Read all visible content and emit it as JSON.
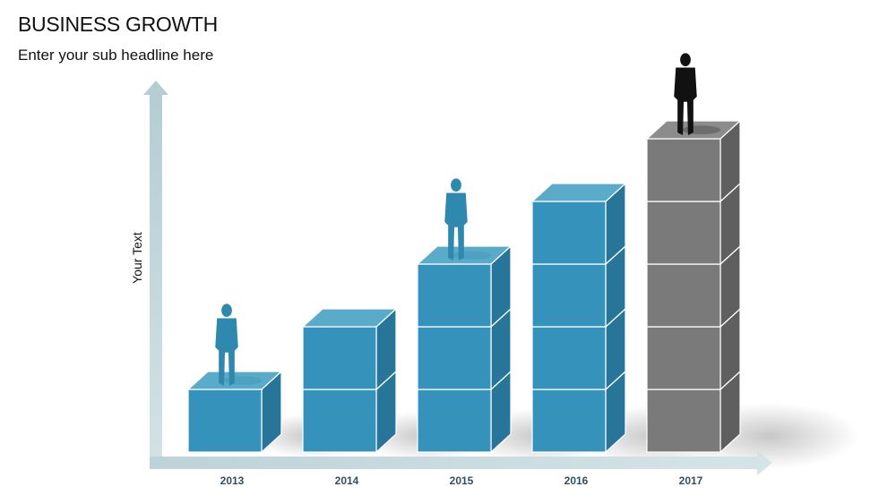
{
  "title": "BUSINESS GROWTH",
  "subtitle": "Enter your sub headline here",
  "colors": {
    "blue_front": "#3592bb",
    "blue_top": "#5aaac9",
    "blue_side": "#27769a",
    "gray_front": "#7a7a7a",
    "gray_top": "#8c8c8c",
    "gray_side": "#5f5f5f",
    "axis": "#c4d6da",
    "year_label": "#2f5061",
    "person_blue": "#2f88ad",
    "person_black": "#111111"
  },
  "chart_data": {
    "type": "bar",
    "title": "BUSINESS GROWTH",
    "subtitle": "Enter your sub headline here",
    "xlabel": "",
    "ylabel": "Your Text",
    "categories": [
      "2013",
      "2014",
      "2015",
      "2016",
      "2017"
    ],
    "values": [
      1,
      2,
      3,
      4,
      5
    ],
    "ylim": [
      0,
      5
    ],
    "grid": false,
    "highlight_category": "2017",
    "figures_on": [
      "2013",
      "2015",
      "2017"
    ]
  }
}
